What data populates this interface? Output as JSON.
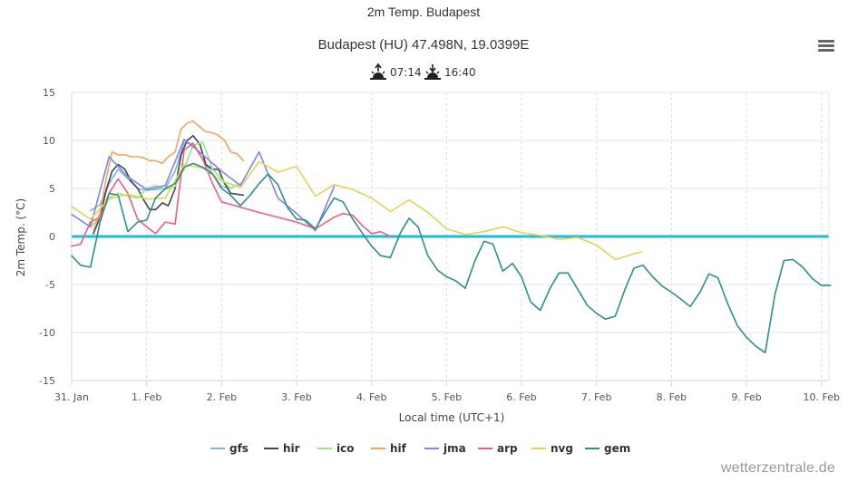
{
  "chart_data": {
    "type": "line",
    "title": "2m Temp. Budapest",
    "subtitle": "Budapest (HU) 47.498N, 19.0399E",
    "sunrise": "07:14",
    "sunset": "16:40",
    "xlabel": "Local time (UTC+1)",
    "ylabel": "2m Temp. (°C)",
    "xlim": [
      0,
      10.1
    ],
    "ylim": [
      -15,
      15
    ],
    "yticks": [
      15,
      10,
      5,
      0,
      -5,
      -10,
      -15
    ],
    "xticks": [
      {
        "x": 0,
        "label": "31. Jan"
      },
      {
        "x": 1,
        "label": "1. Feb"
      },
      {
        "x": 2,
        "label": "2. Feb"
      },
      {
        "x": 3,
        "label": "3. Feb"
      },
      {
        "x": 4,
        "label": "4. Feb"
      },
      {
        "x": 5,
        "label": "5. Feb"
      },
      {
        "x": 6,
        "label": "6. Feb"
      },
      {
        "x": 7,
        "label": "7. Feb"
      },
      {
        "x": 8,
        "label": "8. Feb"
      },
      {
        "x": 9,
        "label": "9. Feb"
      },
      {
        "x": 10,
        "label": "10. Feb"
      }
    ],
    "zero_line_color": "#1bbbe2",
    "series": [
      {
        "name": "gfs",
        "color": "#7cb5ec",
        "x": [
          0.25,
          0.38,
          0.5,
          0.62,
          0.75,
          0.88,
          1.0,
          1.12,
          1.25,
          1.38,
          1.5,
          1.62,
          1.75,
          1.88,
          2.0,
          2.12,
          2.25
        ],
        "y": [
          2.7,
          3.3,
          5.5,
          7.0,
          6.0,
          5.0,
          4.8,
          4.9,
          5.0,
          6.8,
          9.8,
          9.6,
          8.0,
          6.5,
          5.2,
          5.0,
          5.5
        ]
      },
      {
        "name": "hir",
        "color": "#434348",
        "x": [
          0.29,
          0.38,
          0.46,
          0.54,
          0.62,
          0.71,
          0.79,
          0.88,
          0.96,
          1.04,
          1.12,
          1.21,
          1.29,
          1.38,
          1.46,
          1.54,
          1.62,
          1.71,
          1.79,
          1.88,
          1.96,
          2.04,
          2.12,
          2.21,
          2.29
        ],
        "y": [
          0.3,
          2.0,
          4.8,
          6.8,
          7.5,
          7.0,
          5.8,
          5.0,
          3.8,
          2.8,
          2.8,
          3.5,
          3.2,
          5.0,
          8.5,
          10.0,
          10.5,
          9.6,
          7.5,
          7.0,
          7.0,
          5.5,
          4.5,
          4.4,
          4.3
        ]
      },
      {
        "name": "ico",
        "color": "#90ed7d",
        "x": [
          0.25,
          0.38,
          0.5,
          0.62,
          0.75,
          0.88,
          1.0,
          1.12,
          1.25,
          1.38,
          1.5,
          1.62,
          1.75,
          1.88,
          2.0,
          2.12,
          2.25
        ],
        "y": [
          1.0,
          2.0,
          4.0,
          4.5,
          4.2,
          4.0,
          5.0,
          5.3,
          4.9,
          5.2,
          7.0,
          9.5,
          9.8,
          7.0,
          6.0,
          5.0,
          5.5
        ]
      },
      {
        "name": "hif",
        "color": "#f7a35c",
        "x": [
          0.29,
          0.38,
          0.46,
          0.54,
          0.62,
          0.71,
          0.79,
          0.88,
          0.96,
          1.04,
          1.12,
          1.21,
          1.29,
          1.38,
          1.46,
          1.54,
          1.62,
          1.71,
          1.79,
          1.88,
          1.96,
          2.04,
          2.12,
          2.21,
          2.29
        ],
        "y": [
          0.6,
          2.5,
          6.0,
          8.8,
          8.5,
          8.5,
          8.3,
          8.3,
          8.2,
          7.9,
          7.9,
          7.6,
          8.3,
          8.8,
          11.2,
          11.8,
          12.0,
          11.4,
          10.9,
          10.8,
          10.5,
          10.0,
          8.8,
          8.6,
          7.9
        ]
      },
      {
        "name": "jma",
        "color": "#8085e9",
        "x": [
          0.0,
          0.25,
          0.5,
          0.75,
          1.0,
          1.25,
          1.5,
          1.75,
          2.0,
          2.25,
          2.5,
          2.75,
          3.0,
          3.25,
          3.5
        ],
        "y": [
          2.3,
          1.0,
          8.3,
          6.2,
          4.9,
          5.3,
          10.1,
          8.5,
          6.8,
          5.3,
          8.8,
          4.0,
          2.4,
          0.6,
          5.2
        ]
      },
      {
        "name": "arp",
        "color": "#f15c80",
        "x": [
          0.0,
          0.12,
          0.25,
          0.38,
          0.5,
          0.62,
          0.75,
          0.88,
          1.0,
          1.12,
          1.25,
          1.38,
          1.5,
          1.62,
          1.75,
          1.88,
          2.0,
          2.5,
          3.0,
          3.25,
          3.5,
          3.62,
          3.75,
          3.88,
          4.0,
          4.12,
          4.25
        ],
        "y": [
          -1.0,
          -0.8,
          1.5,
          2.0,
          4.5,
          6.0,
          4.5,
          1.8,
          1.0,
          0.3,
          1.5,
          1.3,
          9.0,
          9.7,
          8.0,
          5.5,
          3.6,
          2.5,
          1.5,
          0.8,
          2.0,
          2.4,
          2.2,
          1.1,
          0.3,
          0.5,
          0.0
        ]
      },
      {
        "name": "nvg",
        "color": "#e4d354",
        "x": [
          0.0,
          0.25,
          0.5,
          0.75,
          1.0,
          1.25,
          1.5,
          1.75,
          2.0,
          2.25,
          2.5,
          2.75,
          3.0,
          3.25,
          3.5,
          3.75,
          4.0,
          4.25,
          4.5,
          4.75,
          5.0,
          5.25,
          5.5,
          5.75,
          6.0,
          6.25,
          6.5,
          6.75,
          7.0,
          7.25,
          7.5,
          7.6
        ],
        "y": [
          3.1,
          1.8,
          3.9,
          4.4,
          3.9,
          4.0,
          7.5,
          7.1,
          5.8,
          5.1,
          7.8,
          6.7,
          7.3,
          4.2,
          5.4,
          4.9,
          4.0,
          2.6,
          3.8,
          2.5,
          0.8,
          0.2,
          0.5,
          1.0,
          0.4,
          0.1,
          -0.3,
          -0.1,
          -0.9,
          -2.4,
          -1.8,
          -1.6
        ]
      },
      {
        "name": "gem",
        "color": "#2b908f",
        "x": [
          0.0,
          0.12,
          0.25,
          0.38,
          0.5,
          0.62,
          0.75,
          0.88,
          1.0,
          1.12,
          1.25,
          1.38,
          1.5,
          1.62,
          1.75,
          1.88,
          2.0,
          2.12,
          2.25,
          2.38,
          2.5,
          2.62,
          2.75,
          2.88,
          3.0,
          3.12,
          3.25,
          3.38,
          3.5,
          3.62,
          3.75,
          3.88,
          4.0,
          4.12,
          4.25,
          4.38,
          4.5,
          4.62,
          4.75,
          4.88,
          5.0,
          5.12,
          5.25,
          5.38,
          5.5,
          5.62,
          5.75,
          5.88,
          6.0,
          6.12,
          6.25,
          6.38,
          6.5,
          6.62,
          6.75,
          6.88,
          7.0,
          7.12,
          7.25,
          7.38,
          7.5,
          7.62,
          7.75,
          7.88,
          8.0,
          8.12,
          8.25,
          8.38,
          8.5,
          8.62,
          8.75,
          8.88,
          9.0,
          9.12,
          9.25,
          9.38,
          9.5,
          9.62,
          9.75,
          9.88,
          10.0,
          10.12
        ],
        "y": [
          -2.0,
          -3.0,
          -3.2,
          1.5,
          4.5,
          4.3,
          0.5,
          1.5,
          1.7,
          4.0,
          5.0,
          5.5,
          7.2,
          7.6,
          7.2,
          6.5,
          5.0,
          4.3,
          3.2,
          4.3,
          5.5,
          6.5,
          5.4,
          3.0,
          1.8,
          1.7,
          0.8,
          2.5,
          4.0,
          3.6,
          1.8,
          0.3,
          -1.0,
          -2.0,
          -2.2,
          0.3,
          1.9,
          1.0,
          -2.0,
          -3.5,
          -4.2,
          -4.6,
          -5.4,
          -2.5,
          -0.5,
          -0.8,
          -3.6,
          -2.8,
          -4.2,
          -6.8,
          -7.7,
          -5.4,
          -3.8,
          -3.8,
          -5.5,
          -7.2,
          -8.0,
          -8.6,
          -8.3,
          -5.5,
          -3.3,
          -3.0,
          -4.2,
          -5.2,
          -5.8,
          -6.5,
          -7.3,
          -5.8,
          -3.9,
          -4.3,
          -7.0,
          -9.3,
          -10.5,
          -11.4,
          -12.1,
          -6.0,
          -2.5,
          -2.4,
          -3.2,
          -4.4,
          -5.1,
          -5.1
        ]
      }
    ],
    "legend": "bottom"
  },
  "credit": "wetterzentrale.de",
  "menu_icon": "hamburger-menu-icon"
}
